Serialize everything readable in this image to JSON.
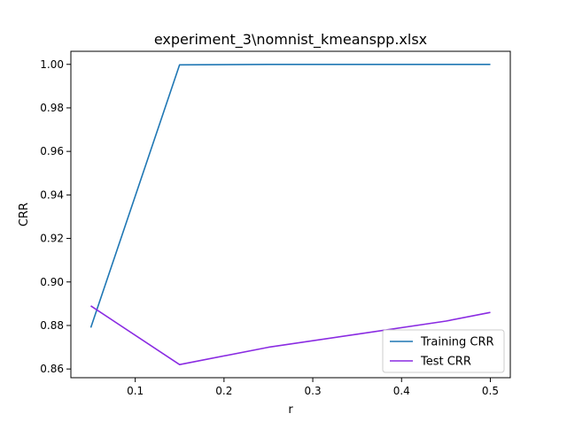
{
  "chart_data": {
    "type": "line",
    "title": "experiment_3\\nomnist_kmeanspp.xlsx",
    "xlabel": "r",
    "ylabel": "CRR",
    "xlim": [
      0.0275,
      0.5225
    ],
    "ylim": [
      0.856,
      1.006
    ],
    "xticks": [
      0.1,
      0.2,
      0.3,
      0.4,
      0.5
    ],
    "xtick_labels": [
      "0.1",
      "0.2",
      "0.3",
      "0.4",
      "0.5"
    ],
    "yticks": [
      0.86,
      0.88,
      0.9,
      0.92,
      0.94,
      0.96,
      0.98,
      1.0
    ],
    "ytick_labels": [
      "0.86",
      "0.88",
      "0.90",
      "0.92",
      "0.94",
      "0.96",
      "0.98",
      "1.00"
    ],
    "grid": false,
    "legend_position": "lower right",
    "x": [
      0.05,
      0.15,
      0.25,
      0.35,
      0.45,
      0.5
    ],
    "series": [
      {
        "name": "Training CRR",
        "color": "#1f77b4",
        "values": [
          0.879,
          0.9998,
          1.0,
          1.0,
          1.0,
          1.0
        ]
      },
      {
        "name": "Test CRR",
        "color": "#8a2be2",
        "values": [
          0.889,
          0.862,
          0.87,
          0.876,
          0.882,
          0.886
        ]
      }
    ]
  }
}
